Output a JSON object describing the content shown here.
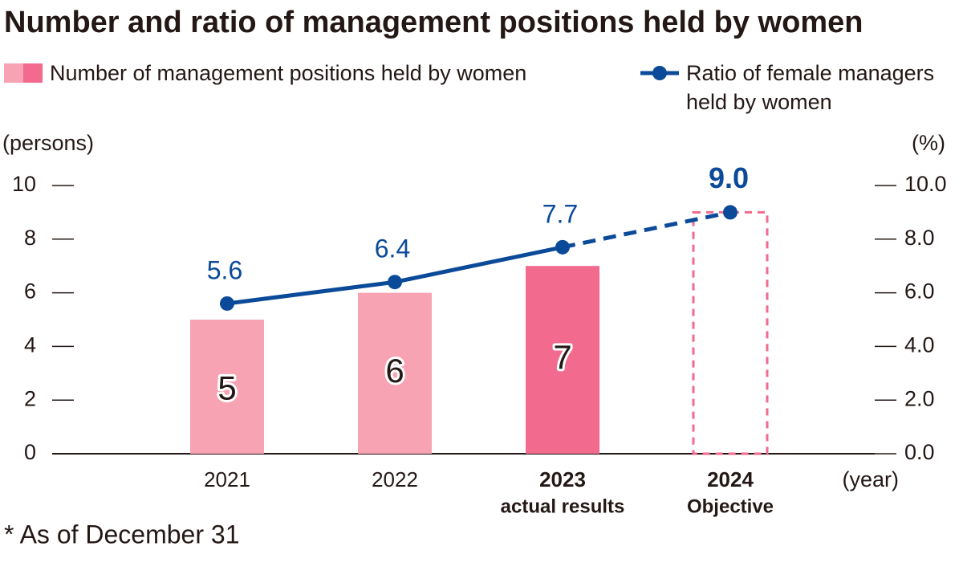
{
  "chart_data": {
    "type": "bar_line",
    "title": "Number and ratio of management positions held by women",
    "y_label": "(persons)",
    "y2_label": "(%)",
    "x_label": "(year)",
    "footnote": "* As of December 31",
    "categories": [
      "2021",
      "2022",
      "2023",
      "2024"
    ],
    "category_notes": [
      null,
      null,
      "actual results",
      "Objective"
    ],
    "category_bold": [
      false,
      false,
      true,
      true
    ],
    "series": [
      {
        "name": "Number of management positions held by women",
        "kind": "bar",
        "values": [
          5,
          6,
          7,
          9
        ],
        "colors": [
          "#f8a3b3",
          "#f8a3b3",
          "#f26a8d",
          "#f26a8d"
        ],
        "dashed": [
          false,
          false,
          false,
          true
        ],
        "show_labels": [
          true,
          true,
          true,
          false
        ]
      },
      {
        "name": "Ratio of female managers held by women",
        "kind": "line",
        "axis": "y2",
        "color": "#0b4a99",
        "values": [
          5.6,
          6.4,
          7.7,
          9.0
        ],
        "value_labels": [
          "5.6",
          "6.4",
          "7.7",
          "9.0"
        ],
        "dashed_segments": [
          false,
          false,
          true
        ]
      }
    ],
    "ylim": [
      0,
      10
    ],
    "yticks": [
      0,
      2,
      4,
      6,
      8,
      10
    ],
    "y2lim": [
      0,
      10
    ],
    "y2ticks": [
      {
        "value": 0,
        "label": "0.0"
      },
      {
        "value": 2,
        "label": "2.0"
      },
      {
        "value": 4,
        "label": "4.0"
      },
      {
        "value": 6,
        "label": "6.0"
      },
      {
        "value": 8,
        "label": "8.0"
      },
      {
        "value": 10,
        "label": "10.0"
      }
    ]
  }
}
